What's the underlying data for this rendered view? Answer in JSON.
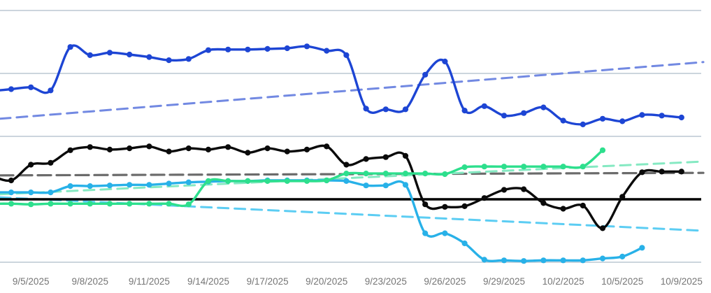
{
  "chart_data": {
    "type": "line",
    "title": "",
    "xlabel": "",
    "ylabel": "",
    "x": [
      "9/3/2025",
      "9/4/2025",
      "9/5/2025",
      "9/6/2025",
      "9/7/2025",
      "9/8/2025",
      "9/9/2025",
      "9/10/2025",
      "9/11/2025",
      "9/12/2025",
      "9/13/2025",
      "9/14/2025",
      "9/15/2025",
      "9/16/2025",
      "9/17/2025",
      "9/18/2025",
      "9/19/2025",
      "9/20/2025",
      "9/21/2025",
      "9/22/2025",
      "9/23/2025",
      "9/24/2025",
      "9/25/2025",
      "9/26/2025",
      "9/27/2025",
      "9/28/2025",
      "9/29/2025",
      "9/30/2025",
      "10/1/2025",
      "10/2/2025",
      "10/3/2025",
      "10/4/2025",
      "10/5/2025",
      "10/7/2025",
      "10/8/2025",
      "10/9/2025"
    ],
    "x_tick_labels": [
      "9/5/2025",
      "9/8/2025",
      "9/11/2025",
      "9/14/2025",
      "9/17/2025",
      "9/20/2025",
      "9/23/2025",
      "9/26/2025",
      "9/29/2025",
      "10/2/2025",
      "10/5/2025",
      "10/9/2025"
    ],
    "x_tick_indices": [
      2,
      5,
      8,
      11,
      14,
      17,
      20,
      23,
      26,
      29,
      32,
      35
    ],
    "ylim": [
      -1.2,
      3.2
    ],
    "gridline_values": [
      3,
      2,
      1,
      -1
    ],
    "zero_axis_value": 0,
    "grid": true,
    "legend_position": "none",
    "series": [
      {
        "name": "blue-series",
        "color": "#1d45d4",
        "marker": true,
        "values": [
          1.72,
          1.75,
          1.78,
          1.73,
          2.42,
          2.29,
          2.33,
          2.3,
          2.26,
          2.21,
          2.23,
          2.37,
          2.38,
          2.38,
          2.39,
          2.4,
          2.43,
          2.36,
          2.29,
          1.44,
          1.43,
          1.43,
          1.98,
          2.19,
          1.41,
          1.48,
          1.33,
          1.37,
          1.46,
          1.25,
          1.19,
          1.28,
          1.24,
          1.34,
          1.33,
          1.3
        ]
      },
      {
        "name": "black-series",
        "color": "#0a0a0a",
        "marker": true,
        "values": [
          0.38,
          0.3,
          0.55,
          0.58,
          0.78,
          0.83,
          0.79,
          0.81,
          0.84,
          0.76,
          0.81,
          0.79,
          0.83,
          0.74,
          0.81,
          0.76,
          0.79,
          0.84,
          0.55,
          0.64,
          0.67,
          0.69,
          -0.08,
          -0.12,
          -0.11,
          0.02,
          0.15,
          0.16,
          -0.06,
          -0.15,
          -0.1,
          -0.46,
          0.04,
          0.43,
          0.44,
          0.44
        ]
      },
      {
        "name": "cyan-series",
        "color": "#28b1e8",
        "marker": true,
        "values": [
          0.11,
          0.11,
          0.11,
          0.11,
          0.21,
          0.21,
          0.22,
          0.23,
          0.23,
          0.25,
          0.27,
          0.28,
          0.29,
          0.29,
          0.3,
          0.3,
          0.3,
          0.3,
          0.29,
          0.22,
          0.22,
          0.23,
          -0.54,
          -0.54,
          -0.7,
          -0.96,
          -0.97,
          -0.98,
          -0.97,
          -0.97,
          -0.97,
          -0.94,
          -0.91,
          -0.77,
          null,
          null
        ]
      },
      {
        "name": "green-series",
        "color": "#2ddf8d",
        "marker": true,
        "values": [
          -0.07,
          -0.07,
          -0.08,
          -0.07,
          -0.07,
          -0.07,
          -0.07,
          -0.07,
          -0.07,
          -0.07,
          -0.08,
          0.29,
          0.29,
          0.29,
          0.29,
          0.29,
          0.29,
          0.3,
          0.41,
          0.41,
          0.41,
          0.41,
          0.41,
          0.4,
          0.51,
          0.52,
          0.52,
          0.52,
          0.52,
          0.52,
          0.52,
          0.78,
          null,
          null,
          null,
          null
        ]
      }
    ],
    "trendlines": [
      {
        "name": "blue-trendline",
        "color": "#7289e2",
        "start": 1.28,
        "end": 2.18,
        "dash": "15 9",
        "width": 3
      },
      {
        "name": "gray-trendline",
        "color": "#6b6b6b",
        "start": 0.38,
        "end": 0.42,
        "dash": "19 8",
        "width": 3.2
      },
      {
        "name": "green-trendline",
        "color": "#85e9c2",
        "start": 0.08,
        "end": 0.6,
        "dash": "15 9",
        "width": 3
      },
      {
        "name": "cyan-trendline",
        "color": "#5ccdf3",
        "start": 0.03,
        "end": -0.5,
        "dash": "15 9",
        "width": 3
      }
    ]
  },
  "layout_colors": {
    "background": "#ffffff",
    "gridline": "#ccd5dd",
    "zero_axis": "#000000",
    "tick_text": "#757575"
  }
}
